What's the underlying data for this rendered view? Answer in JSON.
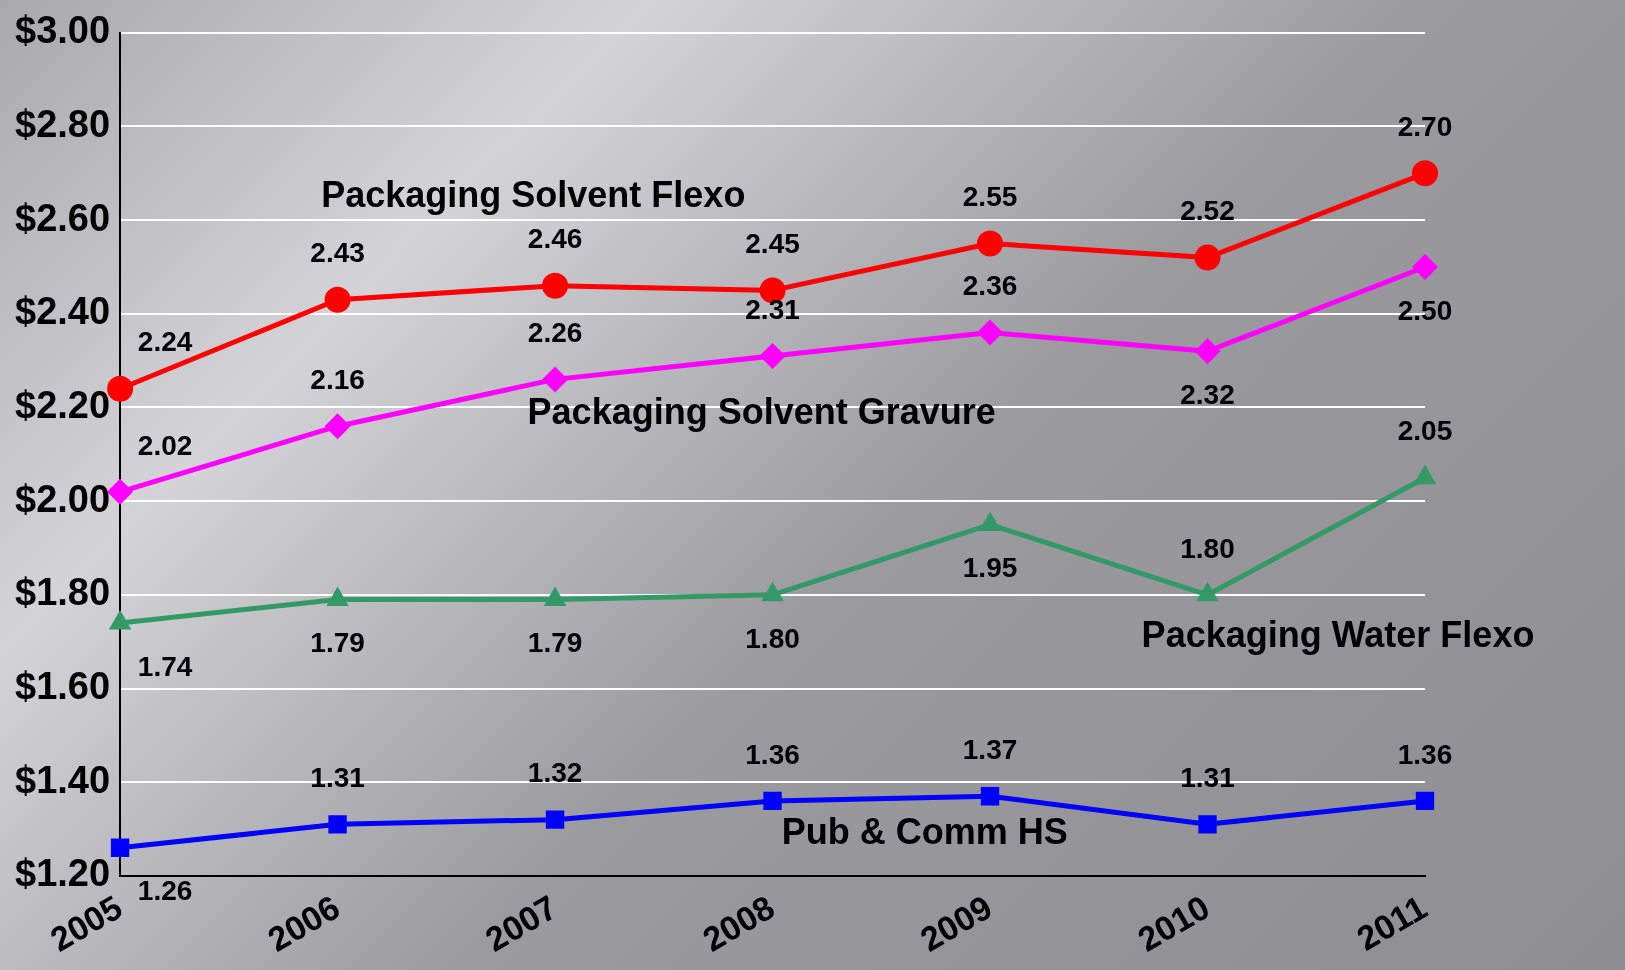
{
  "chart_data": {
    "type": "line",
    "categories": [
      "2005",
      "2006",
      "2007",
      "2008",
      "2009",
      "2010",
      "2011"
    ],
    "series": [
      {
        "name": "Packaging Solvent Flexo",
        "color": "#ff0000",
        "marker": "circle",
        "values": [
          2.24,
          2.43,
          2.46,
          2.45,
          2.55,
          2.52,
          2.7
        ],
        "value_labels": [
          "2.24",
          "2.43",
          "2.46",
          "2.45",
          "2.55",
          "2.52",
          "2.70"
        ]
      },
      {
        "name": "Packaging Solvent Gravure",
        "color": "#ff00ff",
        "marker": "diamond",
        "values": [
          2.02,
          2.16,
          2.26,
          2.31,
          2.36,
          2.32,
          2.5
        ],
        "value_labels": [
          "2.02",
          "2.16",
          "2.26",
          "2.31",
          "2.36",
          "2.32",
          "2.50"
        ]
      },
      {
        "name": "Packaging Water Flexo",
        "color": "#339966",
        "marker": "triangle",
        "values": [
          1.74,
          1.79,
          1.79,
          1.8,
          1.95,
          1.8,
          2.05
        ],
        "value_labels": [
          "1.74",
          "1.79",
          "1.79",
          "1.80",
          "1.95",
          "1.80",
          "2.05"
        ]
      },
      {
        "name": "Pub & Comm HS",
        "color": "#0000ff",
        "marker": "square",
        "values": [
          1.26,
          1.31,
          1.32,
          1.36,
          1.37,
          1.31,
          1.36
        ],
        "value_labels": [
          "1.26",
          "1.31",
          "1.32",
          "1.36",
          "1.37",
          "1.31",
          "1.36"
        ]
      }
    ],
    "ylim": [
      1.2,
      3.0
    ],
    "yticks": [
      {
        "value": 1.2,
        "label": "$1.20"
      },
      {
        "value": 1.4,
        "label": "$1.40"
      },
      {
        "value": 1.6,
        "label": "$1.60"
      },
      {
        "value": 1.8,
        "label": "$1.80"
      },
      {
        "value": 2.0,
        "label": "$2.00"
      },
      {
        "value": 2.2,
        "label": "$2.20"
      },
      {
        "value": 2.4,
        "label": "$2.40"
      },
      {
        "value": 2.6,
        "label": "$2.60"
      },
      {
        "value": 2.8,
        "label": "$2.80"
      },
      {
        "value": 3.0,
        "label": "$3.00"
      }
    ],
    "grid": "y",
    "legend": false
  }
}
